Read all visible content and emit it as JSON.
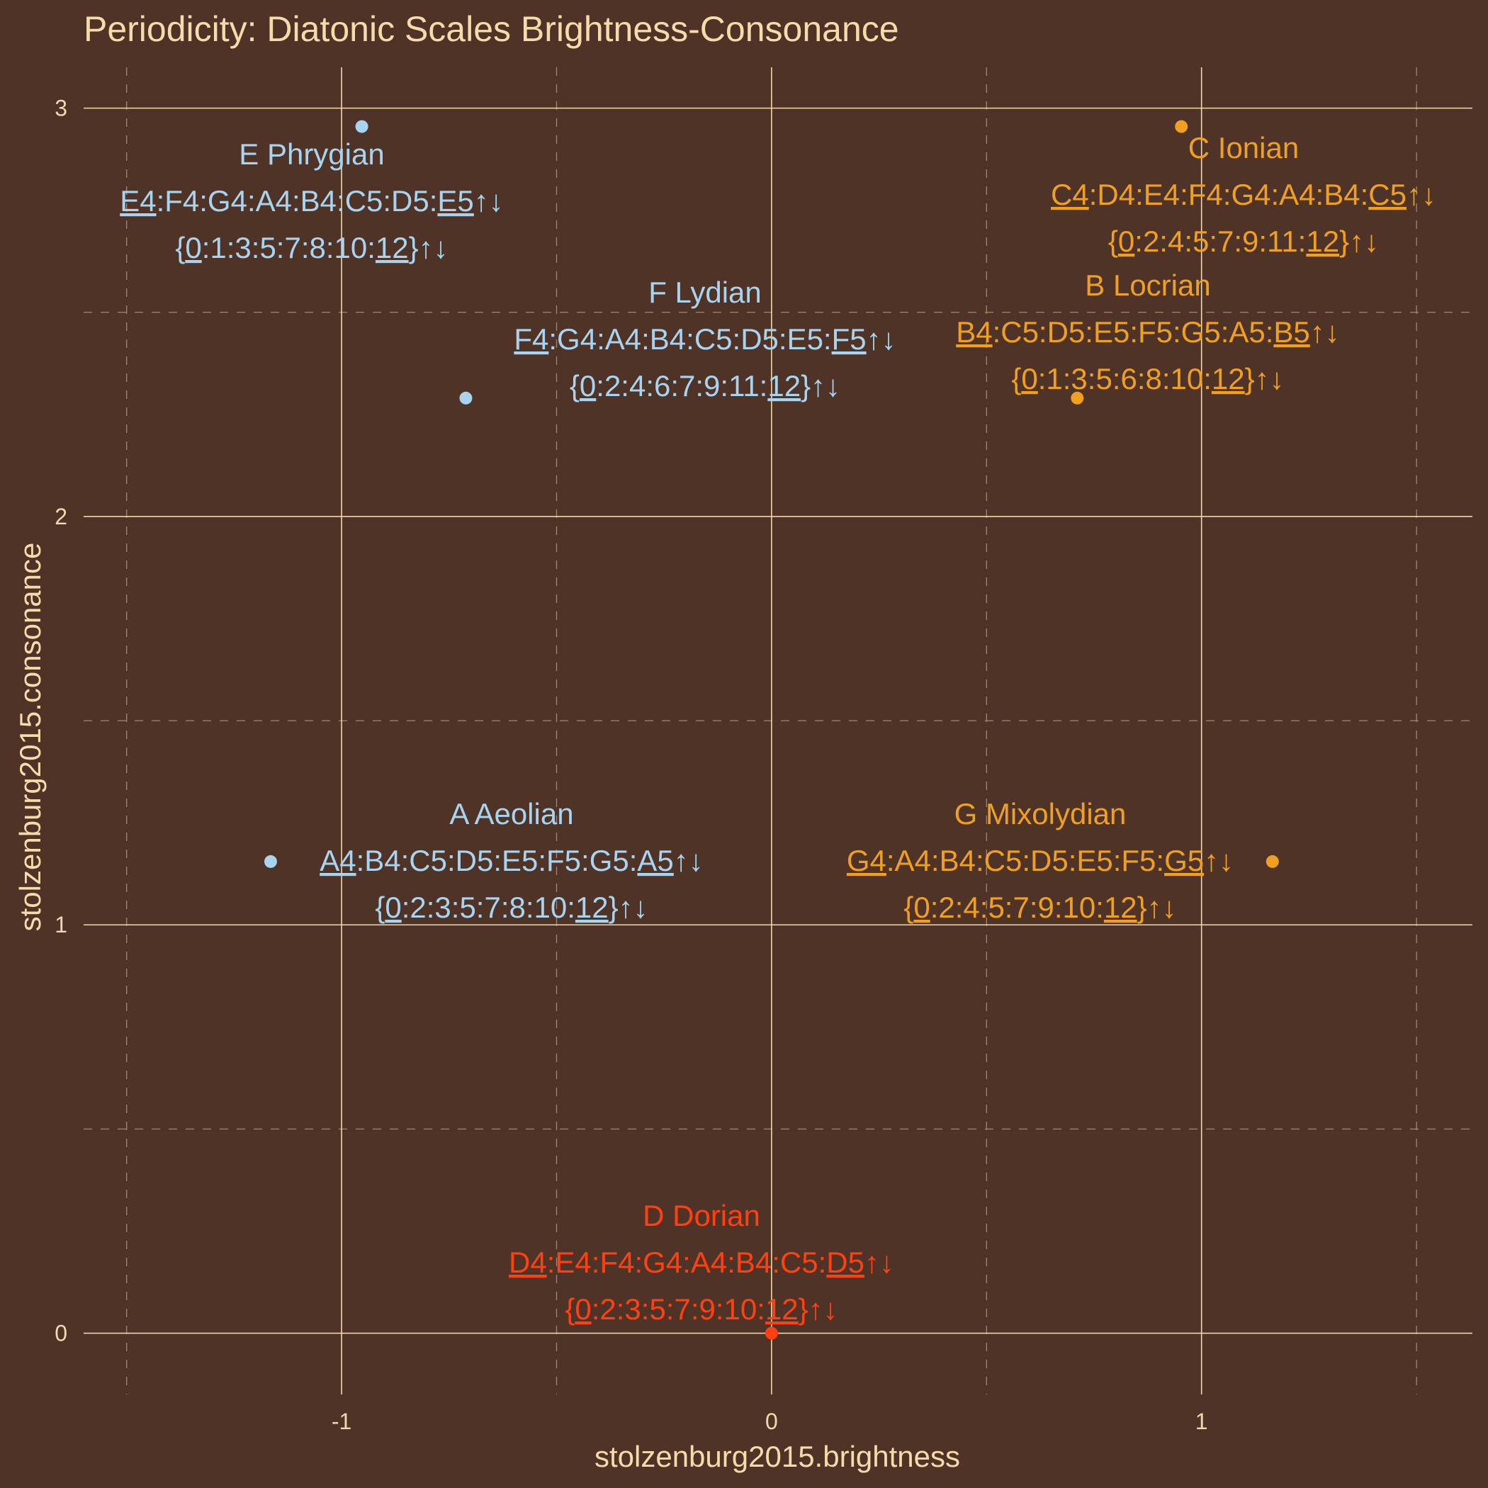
{
  "colors": {
    "background": "#4f3327",
    "grid": "#f0d8a8",
    "text": "#f5dcaa",
    "axis_text": "#f0d8b0",
    "minor_grid": "#a08872"
  },
  "chart_data": {
    "type": "scatter",
    "title": "Periodicity: Diatonic Scales Brightness-Consonance",
    "xlabel": "stolzenburg2015.brightness",
    "ylabel": "stolzenburg2015.consonance",
    "xlim": [
      -1.6,
      1.63
    ],
    "ylim": [
      -0.15,
      3.1
    ],
    "x_ticks": [
      -1,
      0,
      1
    ],
    "x_tick_labels": [
      "-1",
      "0",
      "1"
    ],
    "y_ticks": [
      0,
      1,
      2,
      3
    ],
    "y_tick_labels": [
      "0",
      "1",
      "2",
      "3"
    ],
    "x_minor_ticks": [
      -1.5,
      -0.5,
      0.5,
      1.5
    ],
    "y_minor_ticks": [
      0.5,
      1.5,
      2.5
    ],
    "grid": true,
    "legend": "none",
    "points": [
      {
        "name": "E Phrygian",
        "x": -0.953,
        "y": 2.955,
        "color": "#a8d4f0",
        "notes": [
          [
            "E4",
            1
          ],
          [
            ":F4:G4:A4:B4:C5:D5:",
            0
          ],
          [
            "E5",
            1
          ],
          [
            "↑↓",
            0
          ]
        ],
        "intervals": [
          [
            "{",
            0
          ],
          [
            "0",
            1
          ],
          [
            ":1:3:5:7:8:10:",
            0
          ],
          [
            "12",
            1
          ],
          [
            "}↑↓",
            0
          ]
        ]
      },
      {
        "name": "F Lydian",
        "x": -0.711,
        "y": 2.29,
        "color": "#a8d4f0",
        "notes": [
          [
            "F4",
            1
          ],
          [
            ":G4:A4:B4:C5:D5:E5:",
            0
          ],
          [
            "F5",
            1
          ],
          [
            "↑↓",
            0
          ]
        ],
        "intervals": [
          [
            "{",
            0
          ],
          [
            "0",
            1
          ],
          [
            ":2:4:6:7:9:11:",
            0
          ],
          [
            "12",
            1
          ],
          [
            "}↑↓",
            0
          ]
        ]
      },
      {
        "name": "C Ionian",
        "x": 0.953,
        "y": 2.955,
        "color": "#f0a020",
        "notes": [
          [
            "C4",
            1
          ],
          [
            ":D4:E4:F4:G4:A4:B4:",
            0
          ],
          [
            "C5",
            1
          ],
          [
            "↑↓",
            0
          ]
        ],
        "intervals": [
          [
            "{",
            0
          ],
          [
            "0",
            1
          ],
          [
            ":2:4:5:7:9:11:",
            0
          ],
          [
            "12",
            1
          ],
          [
            "}↑↓",
            0
          ]
        ]
      },
      {
        "name": "B Locrian",
        "x": 0.711,
        "y": 2.29,
        "color": "#f0a020",
        "notes": [
          [
            "B4",
            1
          ],
          [
            ":C5:D5:E5:F5:G5:A5:",
            0
          ],
          [
            "B5",
            1
          ],
          [
            "↑↓",
            0
          ]
        ],
        "intervals": [
          [
            "{",
            0
          ],
          [
            "0",
            1
          ],
          [
            ":1:3:5:6:8:10:",
            0
          ],
          [
            "12",
            1
          ],
          [
            "}↑↓",
            0
          ]
        ]
      },
      {
        "name": "A Aeolian",
        "x": -1.165,
        "y": 1.155,
        "color": "#a8d4f0",
        "notes": [
          [
            "A4",
            1
          ],
          [
            ":B4:C5:D5:E5:F5:G5:",
            0
          ],
          [
            "A5",
            1
          ],
          [
            "↑↓",
            0
          ]
        ],
        "intervals": [
          [
            "{",
            0
          ],
          [
            "0",
            1
          ],
          [
            ":2:3:5:7:8:10:",
            0
          ],
          [
            "12",
            1
          ],
          [
            "}↑↓",
            0
          ]
        ]
      },
      {
        "name": "G Mixolydian",
        "x": 1.165,
        "y": 1.155,
        "color": "#f0a020",
        "notes": [
          [
            "G4",
            1
          ],
          [
            ":A4:B4:C5:D5:E5:F5:",
            0
          ],
          [
            "G5",
            1
          ],
          [
            "↑↓",
            0
          ]
        ],
        "intervals": [
          [
            "{",
            0
          ],
          [
            "0",
            1
          ],
          [
            ":2:4:5:7:9:10:",
            0
          ],
          [
            "12",
            1
          ],
          [
            "}↑↓",
            0
          ]
        ]
      },
      {
        "name": "D Dorian",
        "x": 0.0,
        "y": 0.0,
        "color": "#ff4010",
        "notes": [
          [
            "D4",
            1
          ],
          [
            ":E4:F4:G4:A4:B4:C5:",
            0
          ],
          [
            "D5",
            1
          ],
          [
            "↑↓",
            0
          ]
        ],
        "intervals": [
          [
            "{",
            0
          ],
          [
            "0",
            1
          ],
          [
            ":2:3:5:7:9:10:",
            0
          ],
          [
            "12",
            1
          ],
          [
            "}↑↓",
            0
          ]
        ]
      }
    ]
  }
}
